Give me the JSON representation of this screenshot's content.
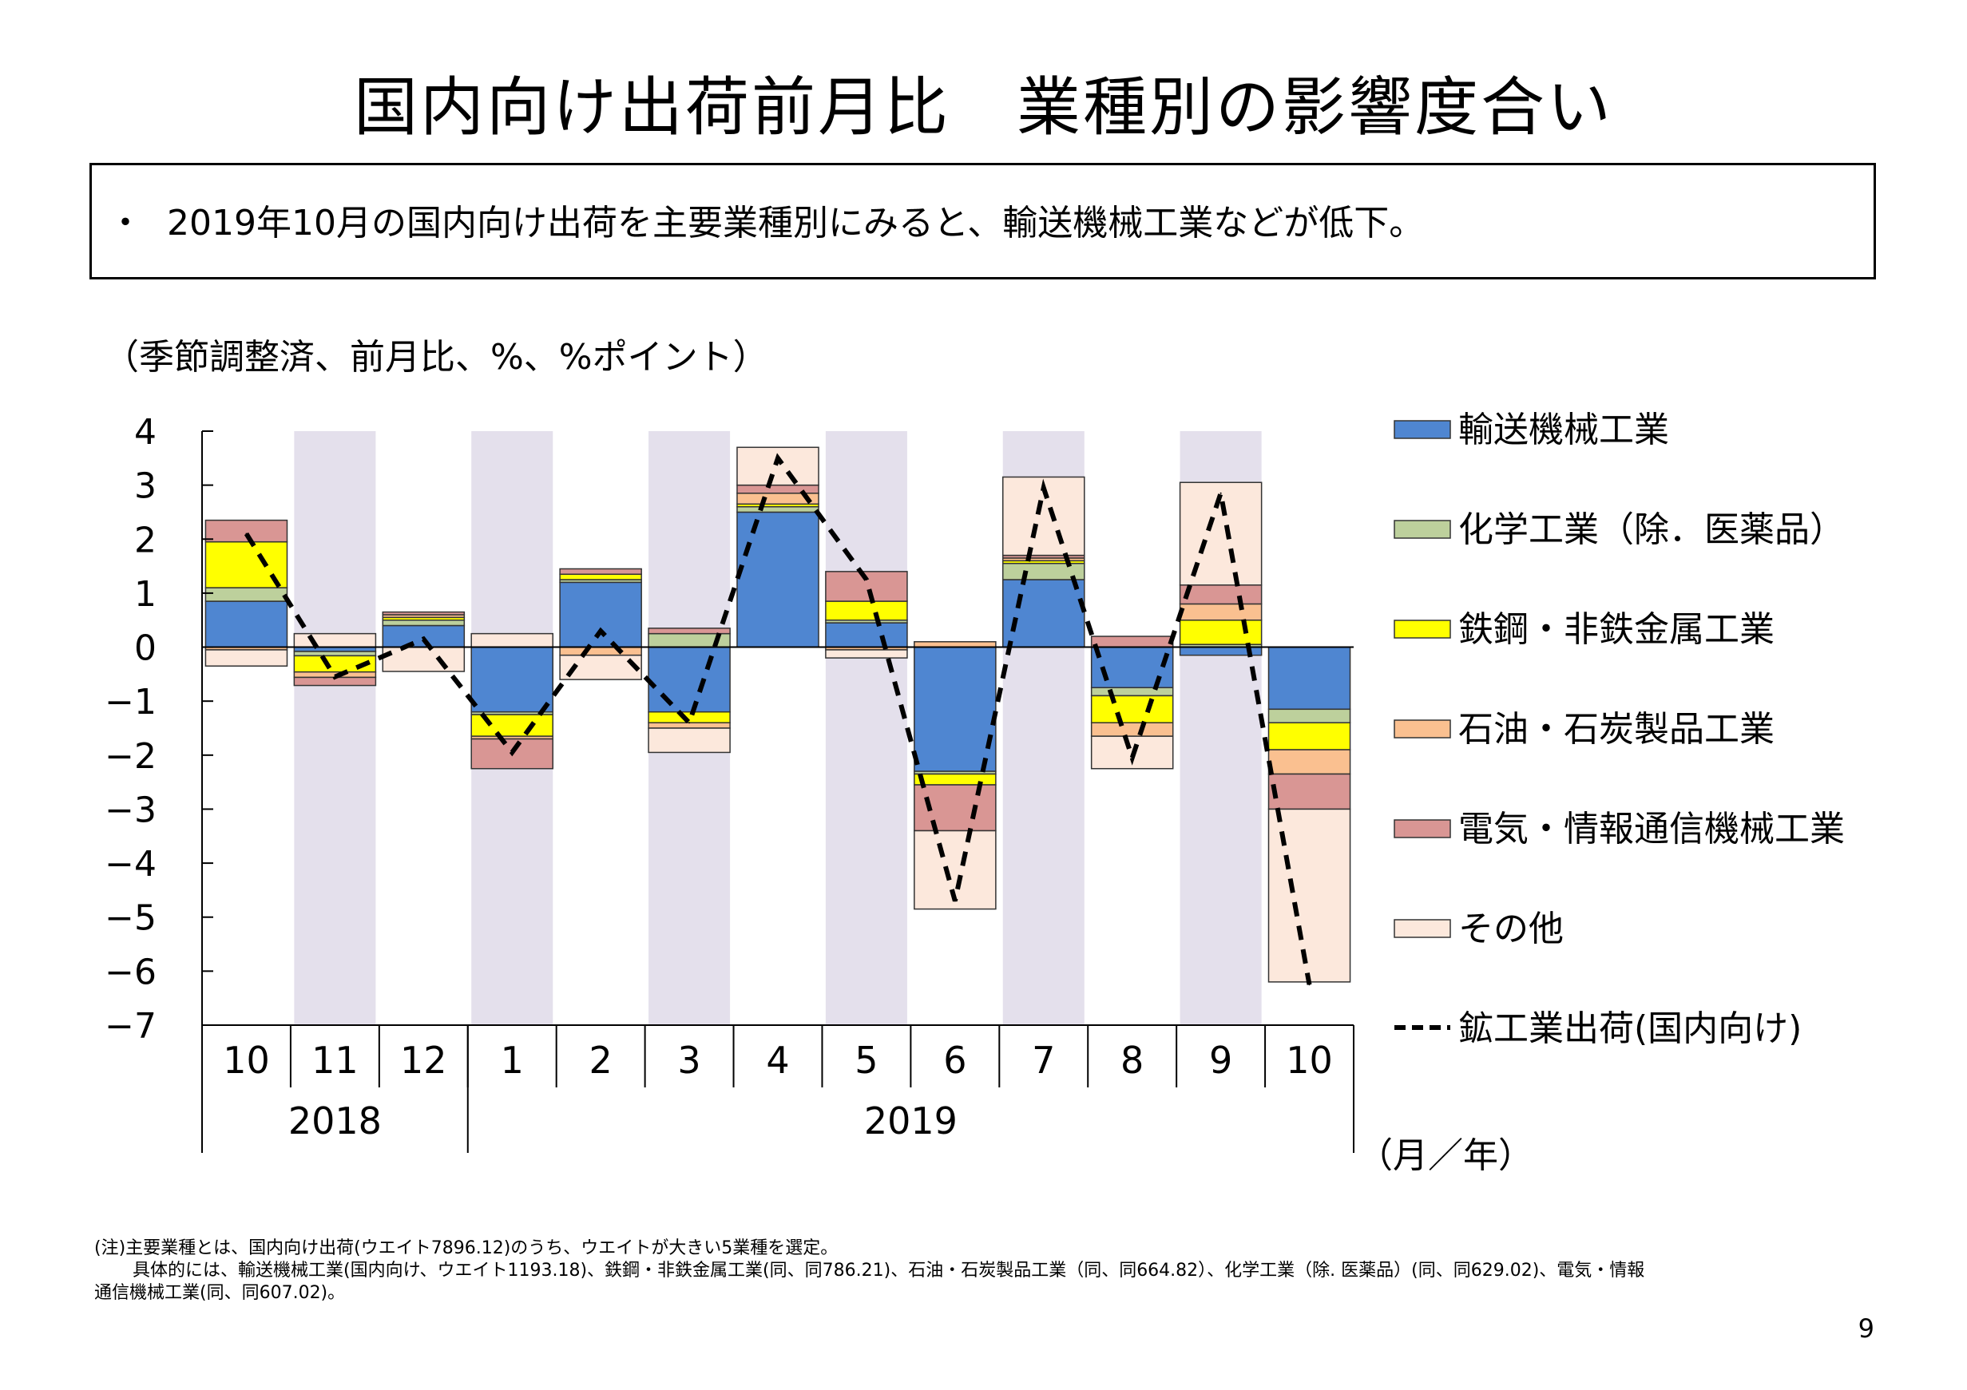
{
  "page": {
    "title": "国内向け出荷前月比　業種別の影響度合い",
    "summary": {
      "bullet": "・",
      "text": "2019年10月の国内向け出荷を主要業種別にみると、輸送機械工業などが低下。"
    },
    "unit_note": "（季節調整済、前月比、%、%ポイント）",
    "footnote": {
      "line1": "(注)主要業種とは、国内向け出荷(ウエイト7896.12)のうち、ウエイトが大きい5業種を選定。",
      "line2": "具体的には、輸送機械工業(国内向け、ウエイト1193.18)、鉄鋼・非鉄金属工業(同、同786.21)、石油・石炭製品工業（同、同664.82）、化学工業（除. 医薬品）(同、同629.02)、電気・情報",
      "line3": "通信機械工業(同、同607.02)。"
    },
    "page_number": "9"
  },
  "chart_data": {
    "type": "bar",
    "stacked": true,
    "x_axis_unit_label": "（月／年）",
    "x_years": [
      {
        "label": "2018",
        "start_index": 0,
        "end_index": 2
      },
      {
        "label": "2019",
        "start_index": 3,
        "end_index": 12
      }
    ],
    "categories": [
      "10",
      "11",
      "12",
      "1",
      "2",
      "3",
      "4",
      "5",
      "6",
      "7",
      "8",
      "9",
      "10"
    ],
    "ylim": [
      -7,
      4
    ],
    "yticks": [
      4,
      3,
      2,
      1,
      0,
      -1,
      -2,
      -3,
      -4,
      -5,
      -6,
      -7
    ],
    "shaded_category_indices": [
      1,
      3,
      5,
      7,
      9,
      11
    ],
    "shade_color": "#e4e0ec",
    "legend_position": "right",
    "series": [
      {
        "name": "輸送機械工業",
        "color": "#4f86d1",
        "values": [
          0.85,
          -0.08,
          0.4,
          -1.2,
          1.2,
          -1.2,
          2.5,
          0.45,
          -2.3,
          1.25,
          -0.75,
          -0.15,
          -1.15
        ]
      },
      {
        "name": "化学工業（除．医薬品）",
        "color": "#bdd09c",
        "values": [
          0.25,
          -0.08,
          0.1,
          -0.05,
          0.05,
          0.25,
          0.1,
          0.05,
          -0.05,
          0.3,
          -0.15,
          0.05,
          -0.25
        ]
      },
      {
        "name": "鉄鋼・非鉄金属工業",
        "color": "#ffff00",
        "values": [
          0.85,
          -0.3,
          0.05,
          -0.4,
          0.1,
          -0.2,
          0.05,
          0.35,
          -0.2,
          0.05,
          -0.5,
          0.45,
          -0.5
        ]
      },
      {
        "name": "石油・石炭製品工業",
        "color": "#fac090",
        "values": [
          -0.05,
          -0.1,
          0.05,
          -0.05,
          -0.15,
          -0.1,
          0.2,
          -0.05,
          0.1,
          0.05,
          -0.25,
          0.3,
          -0.45
        ]
      },
      {
        "name": "電気・情報通信機械工業",
        "color": "#d99694",
        "values": [
          0.4,
          -0.15,
          0.05,
          -0.55,
          0.1,
          0.1,
          0.15,
          0.55,
          -0.85,
          0.05,
          0.2,
          0.35,
          -0.65
        ]
      },
      {
        "name": "その他",
        "color": "#fce8dc",
        "values": [
          -0.3,
          0.25,
          -0.45,
          0.25,
          -0.45,
          -0.45,
          0.7,
          -0.15,
          -1.45,
          1.45,
          -0.6,
          1.9,
          -3.2
        ]
      }
    ],
    "line": {
      "name": "鉱工業出荷(国内向け)",
      "style": "dashed",
      "color": "#000000",
      "values": [
        2.1,
        -0.55,
        0.15,
        -1.95,
        0.3,
        -1.4,
        3.5,
        1.25,
        -4.7,
        2.95,
        -2.05,
        2.85,
        -6.25
      ]
    }
  }
}
